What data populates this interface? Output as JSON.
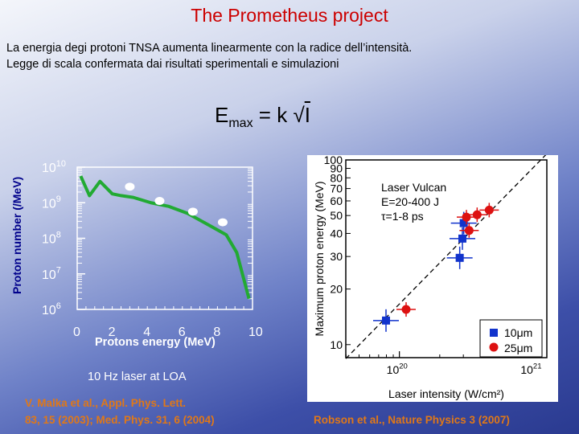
{
  "title": "The Prometheus project",
  "subtitle_line1": "La energia degi protoni  TNSA aumenta  linearmente con la radice dell’intensità.",
  "subtitle_line2": "Legge di  scala confermata dai risultati sperimentali e simulazioni",
  "formula": {
    "lhs": "E",
    "sub": "max",
    "eq": " = k ",
    "sqrt": "√",
    "var": "I"
  },
  "note_laser": "10 Hz laser at LOA",
  "citation_left_line1": "V. Malka et al.,  Appl.  Phys. Lett.",
  "citation_left_line2": "83, 15  (2003); Med. Phys. 31, 6 (2004)",
  "citation_right": "Robson et al., Nature Physics 3 (2007)",
  "colors": {
    "title": "#cc0000",
    "sim_line": "#22aa33",
    "blue": "#1133cc",
    "red": "#dd1111",
    "cite": "#e07818"
  },
  "chart_data": [
    {
      "type": "line",
      "ylabel": "Proton number (/MeV)",
      "xlabel": "Protons energy (MeV)",
      "xlim": [
        0,
        10
      ],
      "y_scale": "log",
      "ylim_exp": [
        6,
        10
      ],
      "x_ticks": [
        "0",
        "2",
        "4",
        "6",
        "8",
        "10"
      ],
      "y_ticks": [
        {
          "exp": 10,
          "base": "10",
          "sup": "10"
        },
        {
          "exp": 9,
          "base": "10",
          "sup": "9"
        },
        {
          "exp": 8,
          "base": "10",
          "sup": "8"
        },
        {
          "exp": 7,
          "base": "10",
          "sup": "7"
        },
        {
          "exp": 6,
          "base": "10",
          "sup": "6"
        }
      ],
      "series": [
        {
          "name": "simulation",
          "style": "line",
          "x": [
            0.2,
            0.7,
            1.3,
            2.0,
            2.5,
            3.2,
            4.2,
            5.2,
            6.3,
            7.4,
            8.5,
            9.1,
            9.8
          ],
          "y_exp": [
            9.75,
            9.2,
            9.6,
            9.25,
            9.2,
            9.15,
            9.0,
            8.9,
            8.7,
            8.4,
            8.1,
            7.6,
            6.3
          ]
        },
        {
          "name": "measured",
          "style": "points",
          "x": [
            3.0,
            4.7,
            6.6,
            8.3
          ],
          "y_exp": [
            9.45,
            9.05,
            8.75,
            8.45
          ]
        }
      ]
    },
    {
      "type": "scatter",
      "xlabel": "Laser intensity (W/cm²)",
      "ylabel": "Maximum proton energy (MeV)",
      "x_scale": "log",
      "y_scale": "log",
      "xlim_exp": [
        19.6,
        21.1
      ],
      "ylim": [
        8.5,
        100
      ],
      "x_ticks": [
        {
          "exp": 20,
          "base": "10",
          "sup": "20"
        },
        {
          "exp": 21,
          "base": "10",
          "sup": "21"
        }
      ],
      "y_ticks": [
        10,
        20,
        30,
        40,
        50,
        60,
        70,
        80,
        90,
        100
      ],
      "annotation": [
        "Laser Vulcan",
        "E=20-400 J",
        "τ=1-8 ps"
      ],
      "legend": [
        {
          "name": "10μm",
          "marker": "square"
        },
        {
          "name": "25μm",
          "marker": "circle"
        }
      ],
      "legend_position": "bottom-right",
      "trend_line": {
        "x_exp": [
          19.6,
          21.1
        ],
        "y": [
          8.4,
          108
        ]
      },
      "series": [
        {
          "name": "10μm",
          "marker": "square",
          "x_exp": [
            19.9,
            20.45,
            20.47,
            20.48
          ],
          "y": [
            13.5,
            29.5,
            37.5,
            45.5
          ]
        },
        {
          "name": "25μm",
          "marker": "circle",
          "x_exp": [
            20.05,
            20.52,
            20.58,
            20.67,
            20.5
          ],
          "y": [
            15.5,
            41.5,
            50.5,
            53.5,
            49
          ]
        }
      ]
    }
  ]
}
